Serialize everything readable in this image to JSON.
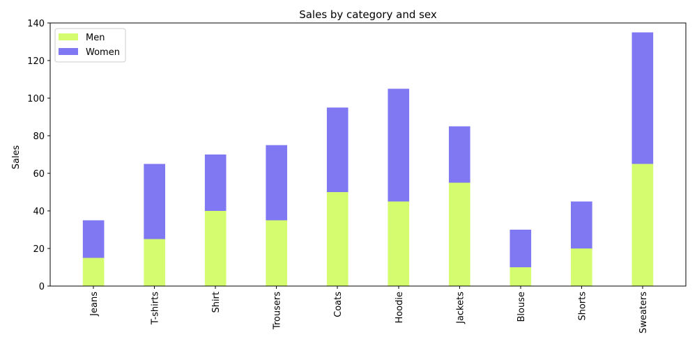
{
  "chart_data": {
    "type": "bar",
    "stacked": true,
    "title": "Sales by category and sex",
    "xlabel": "",
    "ylabel": "Sales",
    "categories": [
      "Jeans",
      "T-shirts",
      "Shirt",
      "Trousers",
      "Coats",
      "Hoodie",
      "Jackets",
      "Blouse",
      "Shorts",
      "Sweaters"
    ],
    "series": [
      {
        "name": "Men",
        "color": "#d4fc6e",
        "values": [
          15,
          25,
          40,
          35,
          50,
          45,
          55,
          10,
          20,
          65
        ]
      },
      {
        "name": "Women",
        "color": "#7f78f2",
        "values": [
          20,
          40,
          30,
          40,
          45,
          60,
          30,
          20,
          25,
          70
        ]
      }
    ],
    "ylim": [
      0,
      140
    ],
    "yticks": [
      0,
      20,
      40,
      60,
      80,
      100,
      120,
      140
    ],
    "grid": false,
    "legend_position": "top-left"
  }
}
